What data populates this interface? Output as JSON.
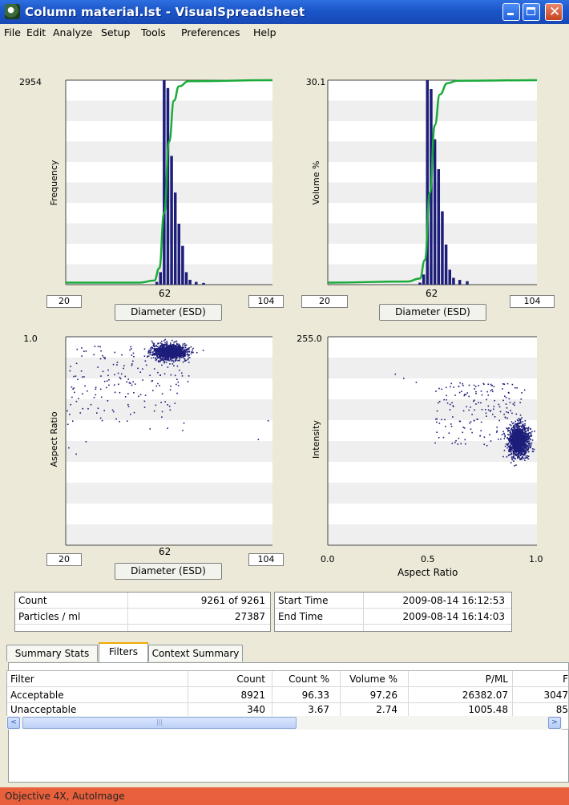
{
  "window": {
    "title": "Column material.lst - VisualSpreadsheet"
  },
  "menu": [
    "File",
    "Edit",
    "Analyze",
    "Setup",
    "Tools",
    "Preferences",
    "Help"
  ],
  "colors": {
    "bar": "#1d1d7a",
    "cumulative": "#1aaa3a",
    "dots": "#1d1d7a",
    "status": "#e8603c",
    "titlebar": "#1b56c9"
  },
  "plots": {
    "freq": {
      "ymax": "2954",
      "ylabel": "Frequency",
      "min": "20",
      "mid": "62",
      "max": "104",
      "axis_button": "Diameter (ESD)"
    },
    "vol": {
      "ymax": "30.1",
      "ylabel": "Volume %",
      "min": "20",
      "mid": "62",
      "max": "104",
      "axis_button": "Diameter (ESD)"
    },
    "ar": {
      "ymax": "1.0",
      "ylabel": "Aspect Ratio",
      "min": "20",
      "mid": "62",
      "max": "104",
      "axis_button": "Diameter (ESD)"
    },
    "int": {
      "ymax": "255.0",
      "ylabel": "Intensity",
      "xmin": "0.0",
      "xmid": "0.5",
      "xmax": "1.0",
      "xlabel": "Aspect Ratio"
    }
  },
  "chart_data": [
    {
      "type": "bar",
      "ylabel": "Frequency",
      "xlabel": "Diameter (ESD)",
      "xlim": [
        20,
        104
      ],
      "ylim": [
        0,
        2954
      ],
      "x": [
        57,
        58.5,
        60,
        61.5,
        63,
        64.5,
        66,
        67.5,
        69,
        70.5,
        73,
        76
      ],
      "values": [
        40,
        180,
        2954,
        2840,
        1860,
        1330,
        880,
        560,
        180,
        70,
        40,
        25
      ],
      "cumulative_percent": [
        [
          20,
          1
        ],
        [
          50,
          1
        ],
        [
          56,
          2
        ],
        [
          58,
          8
        ],
        [
          60,
          35
        ],
        [
          62,
          70
        ],
        [
          64,
          90
        ],
        [
          66,
          97
        ],
        [
          70,
          99.5
        ],
        [
          104,
          100
        ]
      ]
    },
    {
      "type": "bar",
      "ylabel": "Volume %",
      "xlabel": "Diameter (ESD)",
      "xlim": [
        20,
        104
      ],
      "ylim": [
        0,
        30.1
      ],
      "x": [
        57,
        58.5,
        60,
        61.5,
        63,
        64.5,
        66,
        67.5,
        69,
        70.5,
        73,
        76
      ],
      "values": [
        0.3,
        1.5,
        30.1,
        28.8,
        21.4,
        17.0,
        10.8,
        5.9,
        2.2,
        1.0,
        0.7,
        0.5
      ],
      "cumulative_percent": [
        [
          20,
          1
        ],
        [
          52,
          1.5
        ],
        [
          57,
          3
        ],
        [
          59,
          12
        ],
        [
          61,
          45
        ],
        [
          63,
          78
        ],
        [
          65,
          93
        ],
        [
          68,
          98.5
        ],
        [
          72,
          99.7
        ],
        [
          104,
          100
        ]
      ]
    },
    {
      "type": "scatter",
      "xlabel": "Diameter (ESD)",
      "ylabel": "Aspect Ratio",
      "xlim": [
        20,
        104
      ],
      "ylim": [
        0,
        1.0
      ],
      "clusters": [
        {
          "x": 62,
          "y": 0.93,
          "sx": 3.5,
          "sy": 0.018,
          "n": 1200
        }
      ],
      "scatter_spread": {
        "x": [
          20,
          70
        ],
        "y": [
          0.55,
          0.96
        ],
        "n": 180
      },
      "outliers": [
        [
          102,
          0.6
        ],
        [
          98,
          0.51
        ],
        [
          21,
          0.47
        ],
        [
          24,
          0.44
        ],
        [
          28,
          0.5
        ]
      ]
    },
    {
      "type": "scatter",
      "xlabel": "Aspect Ratio",
      "ylabel": "Intensity",
      "xlim": [
        0.0,
        1.0
      ],
      "ylim": [
        0,
        255.0
      ],
      "clusters": [
        {
          "x": 0.91,
          "y": 128,
          "sx": 0.025,
          "sy": 10,
          "n": 1200
        }
      ],
      "scatter_spread": {
        "x": [
          0.5,
          0.95
        ],
        "y": [
          120,
          200
        ],
        "n": 170
      },
      "outliers": [
        [
          0.32,
          210
        ],
        [
          0.36,
          205
        ],
        [
          0.42,
          200
        ],
        [
          0.52,
          165
        ],
        [
          0.56,
          146
        ]
      ]
    }
  ],
  "stats": {
    "count_label": "Count",
    "count_value": "9261  of  9261",
    "ppm_label": "Particles / ml",
    "ppm_value": "27387",
    "start_label": "Start Time",
    "start_value": "2009-08-14  16:12:53",
    "end_label": "End Time",
    "end_value": "2009-08-14  16:14:03"
  },
  "tabs": {
    "summary": "Summary Stats",
    "filters": "Filters",
    "context": "Context Summary"
  },
  "table": {
    "headers": [
      "Filter",
      "Count",
      "Count %",
      "Volume %",
      "P/ML",
      "F"
    ],
    "rows": [
      [
        "Acceptable",
        "8921",
        "96.33",
        "97.26",
        "26382.07",
        "3047"
      ],
      [
        "Unacceptable",
        "340",
        "3.67",
        "2.74",
        "1005.48",
        "85"
      ]
    ]
  },
  "scroll": {
    "left": "<",
    "right": ">",
    "thumb": "|||"
  },
  "status": "Objective 4X, AutoImage"
}
